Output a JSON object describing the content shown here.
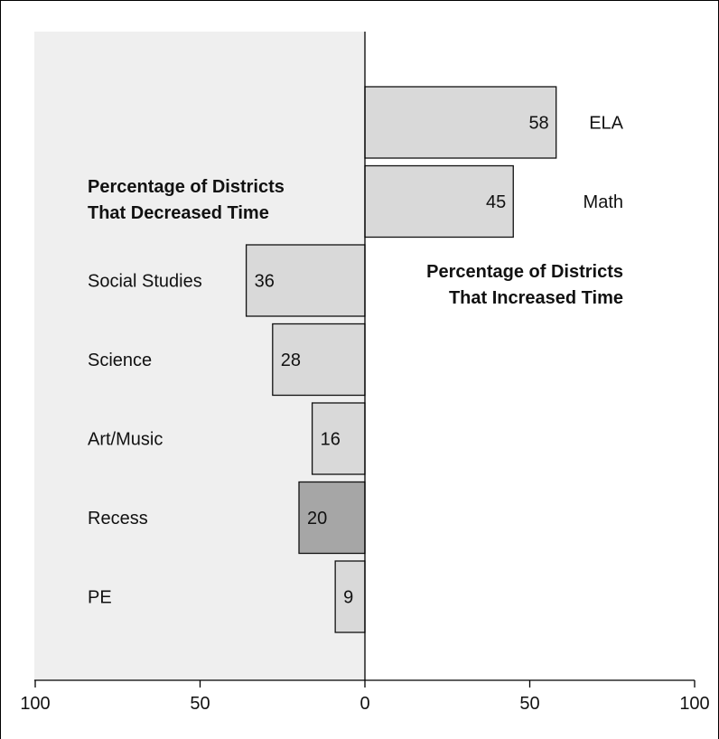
{
  "chart_data": {
    "type": "bar",
    "orientation": "horizontal-diverging",
    "xlim": [
      -100,
      100
    ],
    "x_tick_labels": [
      "100",
      "50",
      "0",
      "50",
      "100"
    ],
    "colors": {
      "left_panel": "#efefef",
      "bar_fill": "#d9d9d9",
      "bar_highlight": "#a6a6a6",
      "bar_stroke": "#111111",
      "axis": "#000000"
    },
    "annotations": {
      "decreased": [
        "Percentage of Districts",
        "That Decreased Time"
      ],
      "increased": [
        "Percentage of Districts",
        "That Increased Time"
      ]
    },
    "bars": [
      {
        "category": "ELA",
        "value": 58,
        "direction": "increased",
        "label": "58"
      },
      {
        "category": "Math",
        "value": 45,
        "direction": "increased",
        "label": "45"
      },
      {
        "category": "Social Studies",
        "value": 36,
        "direction": "decreased",
        "label": "36"
      },
      {
        "category": "Science",
        "value": 28,
        "direction": "decreased",
        "label": "28"
      },
      {
        "category": "Art/Music",
        "value": 16,
        "direction": "decreased",
        "label": "16"
      },
      {
        "category": "Recess",
        "value": 20,
        "direction": "decreased",
        "label": "20",
        "highlight": true
      },
      {
        "category": "PE",
        "value": 9,
        "direction": "decreased",
        "label": "9"
      }
    ]
  }
}
